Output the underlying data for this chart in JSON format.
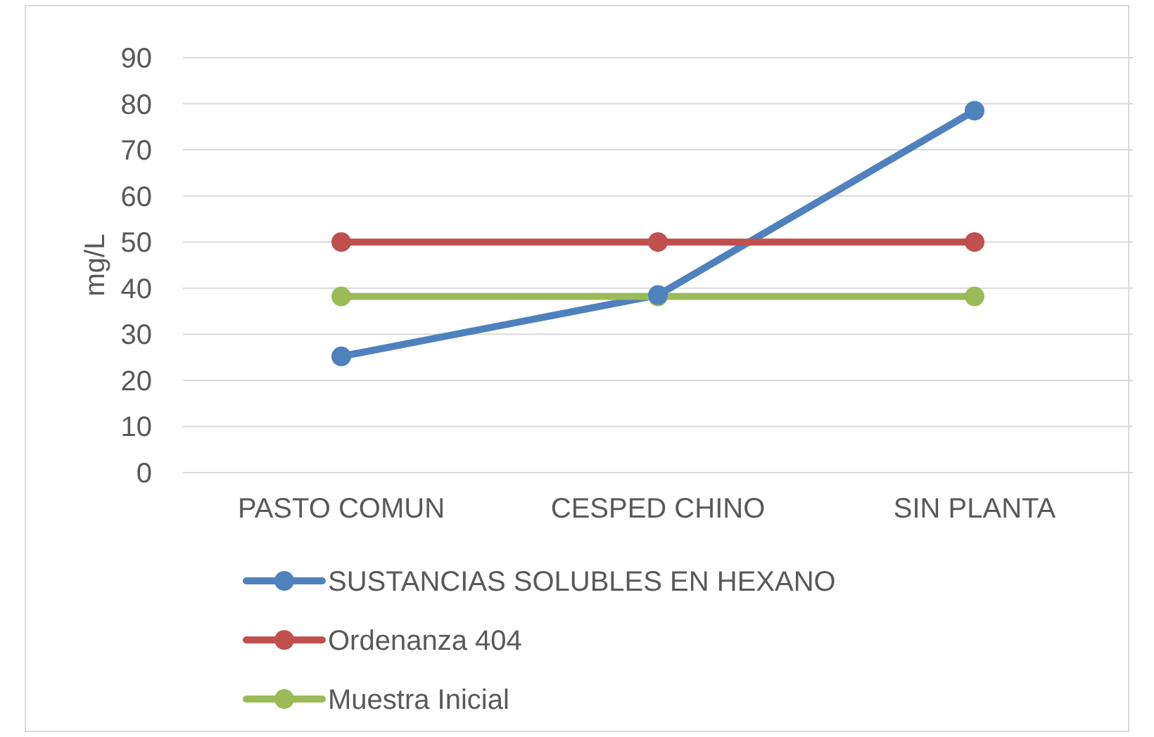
{
  "chart_data": {
    "type": "line",
    "ylabel": "mg/L",
    "categories": [
      "PASTO COMUN",
      "CESPED CHINO",
      "SIN PLANTA"
    ],
    "series": [
      {
        "name": "SUSTANCIAS SOLUBLES EN HEXANO",
        "color": "#4f81bd",
        "values": [
          25.2,
          38.5,
          78.5
        ]
      },
      {
        "name": "Ordenanza 404",
        "color": "#c0504d",
        "values": [
          50,
          50,
          50
        ]
      },
      {
        "name": "Muestra Inicial",
        "color": "#9bbb59",
        "values": [
          38.2,
          38.2,
          38.2
        ]
      }
    ],
    "ylim": [
      0,
      90
    ],
    "yticks": [
      0,
      10,
      20,
      30,
      40,
      50,
      60,
      70,
      80,
      90
    ],
    "grid": "y",
    "legend": "bottom",
    "marker": "circle",
    "line_style": "solid"
  }
}
